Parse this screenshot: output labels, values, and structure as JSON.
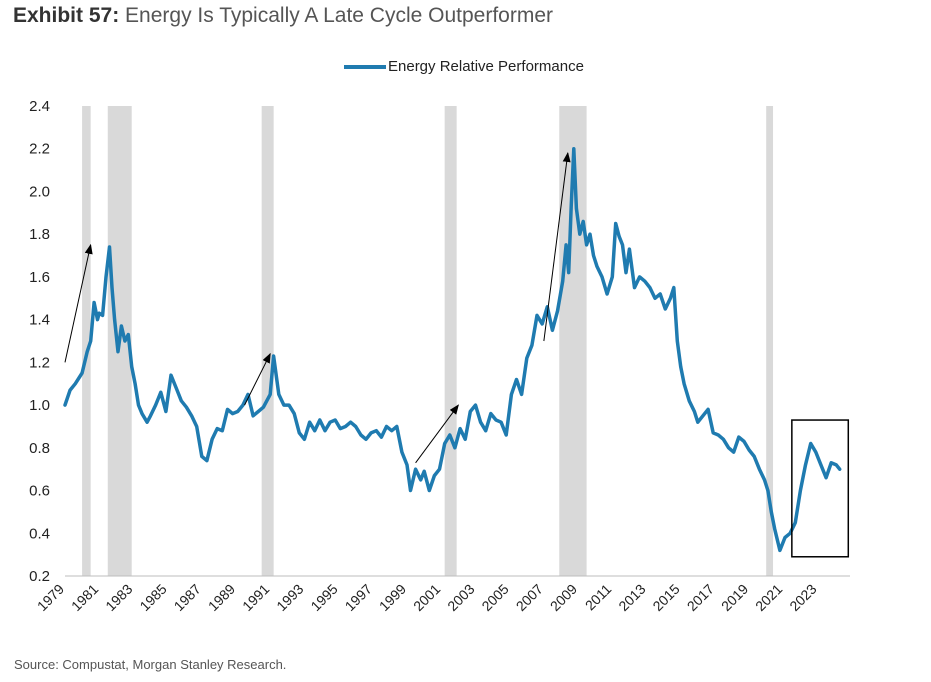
{
  "header": {
    "exhibit": "Exhibit 57:",
    "headline": "Energy Is Typically A Late Cycle Outperformer"
  },
  "footer": {
    "source": "Source: Compustat, Morgan Stanley Research."
  },
  "colors": {
    "series": "#1f7bb0",
    "recession": "#d9d9d9",
    "arrow": "#000000",
    "box": "#000000"
  },
  "chart_data": {
    "type": "line",
    "title": "Energy Is Typically A Late Cycle Outperformer",
    "xlabel": "",
    "ylabel": "",
    "xlim": [
      1979,
      2024.9
    ],
    "ylim": [
      0.2,
      2.4
    ],
    "y_ticks": [
      2.4,
      2.2,
      2.0,
      1.8,
      1.6,
      1.4,
      1.2,
      1.0,
      0.8,
      0.6,
      0.4,
      0.2
    ],
    "y_tick_labels": [
      "2.4",
      "2.2",
      "2.0",
      "1.8",
      "1.6",
      "1.4",
      "1.2",
      "1.0",
      "0.8",
      "0.6",
      "0.4",
      "0.2"
    ],
    "x_ticks": [
      1979,
      1981,
      1983,
      1985,
      1987,
      1989,
      1991,
      1993,
      1995,
      1997,
      1999,
      2001,
      2003,
      2005,
      2007,
      2009,
      2011,
      2013,
      2015,
      2017,
      2019,
      2021,
      2023
    ],
    "x_tick_labels": [
      "1979",
      "1981",
      "1983",
      "1985",
      "1987",
      "1989",
      "1991",
      "1993",
      "1995",
      "1997",
      "1999",
      "2001",
      "2003",
      "2005",
      "2007",
      "2009",
      "2011",
      "2013",
      "2015",
      "2017",
      "2019",
      "2021",
      "2023"
    ],
    "legend": {
      "position": "top-center",
      "entries": [
        "Energy Relative Performance"
      ]
    },
    "series": [
      {
        "name": "Energy Relative Performance",
        "x": [
          1979.0,
          1979.3,
          1979.6,
          1980.0,
          1980.3,
          1980.5,
          1980.7,
          1980.9,
          1981.0,
          1981.2,
          1981.4,
          1981.6,
          1981.75,
          1981.9,
          1982.1,
          1982.3,
          1982.5,
          1982.7,
          1982.9,
          1983.1,
          1983.3,
          1983.5,
          1983.8,
          1984.0,
          1984.3,
          1984.6,
          1984.9,
          1985.2,
          1985.5,
          1985.8,
          1986.1,
          1986.4,
          1986.7,
          1987.0,
          1987.3,
          1987.6,
          1987.9,
          1988.2,
          1988.5,
          1988.8,
          1989.1,
          1989.4,
          1989.7,
          1990.0,
          1990.3,
          1990.6,
          1990.8,
          1991.0,
          1991.2,
          1991.5,
          1991.8,
          1992.1,
          1992.4,
          1992.7,
          1993.0,
          1993.3,
          1993.6,
          1993.9,
          1994.2,
          1994.5,
          1994.8,
          1995.1,
          1995.4,
          1995.7,
          1996.0,
          1996.3,
          1996.6,
          1996.9,
          1997.2,
          1997.5,
          1997.8,
          1998.1,
          1998.4,
          1998.7,
          1999.0,
          1999.2,
          1999.5,
          1999.8,
          2000.0,
          2000.3,
          2000.6,
          2000.9,
          2001.2,
          2001.5,
          2001.8,
          2002.1,
          2002.4,
          2002.7,
          2003.0,
          2003.3,
          2003.6,
          2003.9,
          2004.2,
          2004.5,
          2004.8,
          2005.1,
          2005.4,
          2005.7,
          2006.0,
          2006.3,
          2006.6,
          2006.9,
          2007.2,
          2007.5,
          2007.8,
          2008.1,
          2008.3,
          2008.45,
          2008.6,
          2008.75,
          2008.9,
          2009.1,
          2009.3,
          2009.5,
          2009.7,
          2009.9,
          2010.1,
          2010.4,
          2010.7,
          2011.0,
          2011.2,
          2011.4,
          2011.6,
          2011.8,
          2012.0,
          2012.3,
          2012.6,
          2012.9,
          2013.2,
          2013.5,
          2013.8,
          2014.1,
          2014.4,
          2014.6,
          2014.8,
          2015.0,
          2015.2,
          2015.5,
          2015.8,
          2016.0,
          2016.3,
          2016.6,
          2016.9,
          2017.2,
          2017.5,
          2017.8,
          2018.1,
          2018.4,
          2018.7,
          2019.0,
          2019.3,
          2019.6,
          2019.9,
          2020.1,
          2020.3,
          2020.5,
          2020.8,
          2021.1,
          2021.4,
          2021.7,
          2022.0,
          2022.3,
          2022.6,
          2022.9,
          2023.2,
          2023.5,
          2023.8,
          2024.1,
          2024.3
        ],
        "values": [
          1.0,
          1.07,
          1.1,
          1.15,
          1.25,
          1.3,
          1.48,
          1.4,
          1.43,
          1.42,
          1.6,
          1.74,
          1.55,
          1.4,
          1.25,
          1.37,
          1.3,
          1.33,
          1.18,
          1.1,
          1.0,
          0.96,
          0.92,
          0.95,
          1.0,
          1.06,
          0.97,
          1.14,
          1.08,
          1.02,
          0.99,
          0.95,
          0.9,
          0.76,
          0.74,
          0.84,
          0.89,
          0.88,
          0.98,
          0.96,
          0.97,
          1.0,
          1.05,
          0.95,
          0.97,
          0.99,
          1.02,
          1.05,
          1.23,
          1.05,
          1.0,
          1.0,
          0.96,
          0.87,
          0.84,
          0.92,
          0.88,
          0.93,
          0.88,
          0.92,
          0.93,
          0.89,
          0.9,
          0.92,
          0.9,
          0.86,
          0.84,
          0.87,
          0.88,
          0.85,
          0.9,
          0.88,
          0.9,
          0.78,
          0.72,
          0.6,
          0.7,
          0.65,
          0.69,
          0.6,
          0.67,
          0.7,
          0.82,
          0.86,
          0.8,
          0.89,
          0.84,
          0.97,
          1.0,
          0.92,
          0.88,
          0.96,
          0.93,
          0.92,
          0.86,
          1.05,
          1.12,
          1.05,
          1.22,
          1.28,
          1.42,
          1.38,
          1.46,
          1.35,
          1.44,
          1.58,
          1.75,
          1.62,
          1.93,
          2.2,
          1.92,
          1.8,
          1.86,
          1.75,
          1.8,
          1.7,
          1.65,
          1.6,
          1.52,
          1.6,
          1.85,
          1.79,
          1.75,
          1.62,
          1.73,
          1.55,
          1.6,
          1.58,
          1.55,
          1.5,
          1.52,
          1.45,
          1.5,
          1.55,
          1.3,
          1.18,
          1.1,
          1.02,
          0.97,
          0.92,
          0.95,
          0.98,
          0.87,
          0.86,
          0.84,
          0.8,
          0.78,
          0.85,
          0.83,
          0.79,
          0.76,
          0.7,
          0.65,
          0.6,
          0.5,
          0.42,
          0.32,
          0.38,
          0.4,
          0.45,
          0.6,
          0.72,
          0.82,
          0.78,
          0.72,
          0.66,
          0.73,
          0.72,
          0.7
        ]
      }
    ],
    "recession_bands": [
      [
        1980.0,
        1980.5
      ],
      [
        1981.5,
        1982.9
      ],
      [
        1990.5,
        1991.2
      ],
      [
        2001.2,
        2001.9
      ],
      [
        2007.9,
        2009.5
      ],
      [
        2020.0,
        2020.4
      ]
    ],
    "arrows": [
      {
        "from": [
          1979.0,
          1.2
        ],
        "to": [
          1980.5,
          1.75
        ]
      },
      {
        "from": [
          1989.5,
          1.0
        ],
        "to": [
          1991.0,
          1.24
        ]
      },
      {
        "from": [
          1999.5,
          0.73
        ],
        "to": [
          2002.0,
          1.0
        ]
      },
      {
        "from": [
          2007.0,
          1.3
        ],
        "to": [
          2008.4,
          2.18
        ]
      }
    ],
    "highlight_box": {
      "x_range": [
        2021.5,
        2024.8
      ],
      "y_range": [
        0.29,
        0.93
      ]
    }
  }
}
